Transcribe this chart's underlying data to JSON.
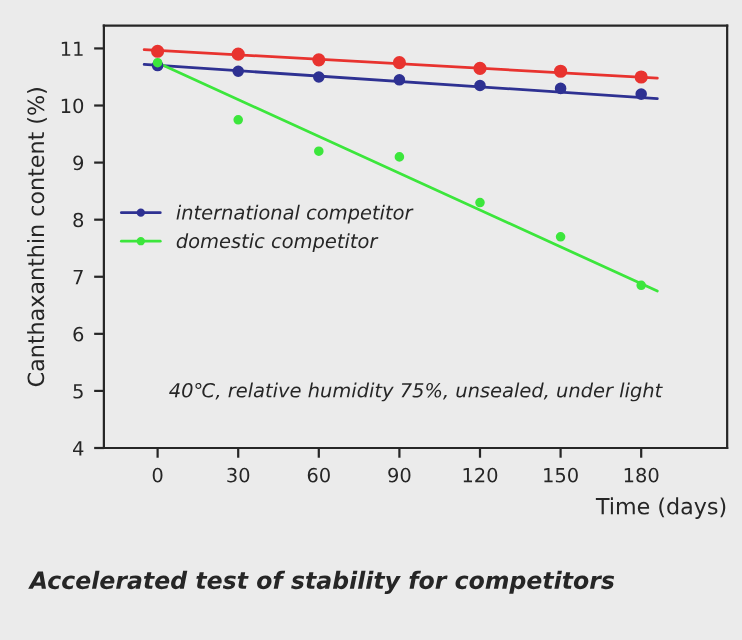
{
  "chart_data": {
    "type": "scatter",
    "title": "Accelerated test of stability for competitors",
    "xlabel": "Time (days)",
    "ylabel": "Canthaxanthin content (%)",
    "annotations": [
      "40℃, relative humidity 75%, unsealed, under light"
    ],
    "x": [
      0,
      30,
      60,
      90,
      120,
      150,
      180
    ],
    "series": [
      {
        "color": "#e8332f",
        "values": [
          10.95,
          10.9,
          10.8,
          10.75,
          10.65,
          10.6,
          10.5
        ]
      },
      {
        "name": "international competitor",
        "color": "#2e3192",
        "values": [
          10.7,
          10.6,
          10.5,
          10.45,
          10.35,
          10.3,
          10.2
        ]
      },
      {
        "name": "domestic competitor",
        "color": "#3ce63c",
        "values": [
          10.75,
          9.75,
          9.2,
          9.1,
          8.3,
          7.7,
          6.85
        ]
      },
      {
        "type": "line",
        "marker": "none",
        "color": "#e8332f",
        "x": [
          -5,
          186
        ],
        "values": [
          10.98,
          10.48
        ]
      },
      {
        "type": "line",
        "marker": "none",
        "color": "#2e3192",
        "x": [
          -5,
          186
        ],
        "values": [
          10.72,
          10.12
        ]
      },
      {
        "type": "line",
        "marker": "none",
        "color": "#3ce63c",
        "x": [
          0,
          186
        ],
        "values": [
          10.75,
          6.75
        ]
      }
    ],
    "xlim": [
      -20,
      212
    ],
    "ylim": [
      4,
      11.4
    ],
    "xticks": [
      0,
      30,
      60,
      90,
      120,
      150,
      180
    ],
    "yticks": [
      4,
      5,
      6,
      7,
      8,
      9,
      10,
      11
    ],
    "marker": "circle",
    "legend": "left",
    "grid": false
  }
}
